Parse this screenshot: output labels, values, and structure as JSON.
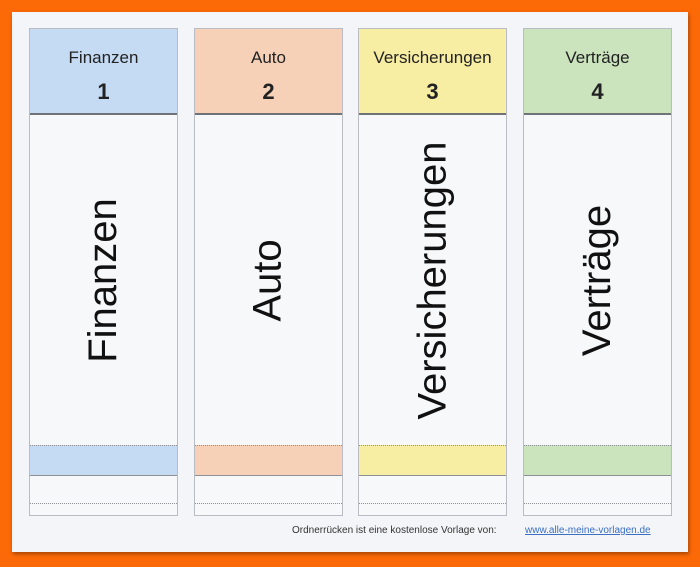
{
  "spines": [
    {
      "title": "Finanzen",
      "number": "1",
      "label": "Finanzen",
      "color": "#c5daf3"
    },
    {
      "title": "Auto",
      "number": "2",
      "label": "Auto",
      "color": "#f6d1b8"
    },
    {
      "title": "Versicherungen",
      "number": "3",
      "label": "Versicherungen",
      "color": "#f7eda3"
    },
    {
      "title": "Verträge",
      "number": "4",
      "label": "Verträge",
      "color": "#cbe4be"
    }
  ],
  "footer": {
    "text": "Ordnerrücken ist eine kostenlose Vorlage von:",
    "link": "www.alle-meine-vorlagen.de"
  }
}
